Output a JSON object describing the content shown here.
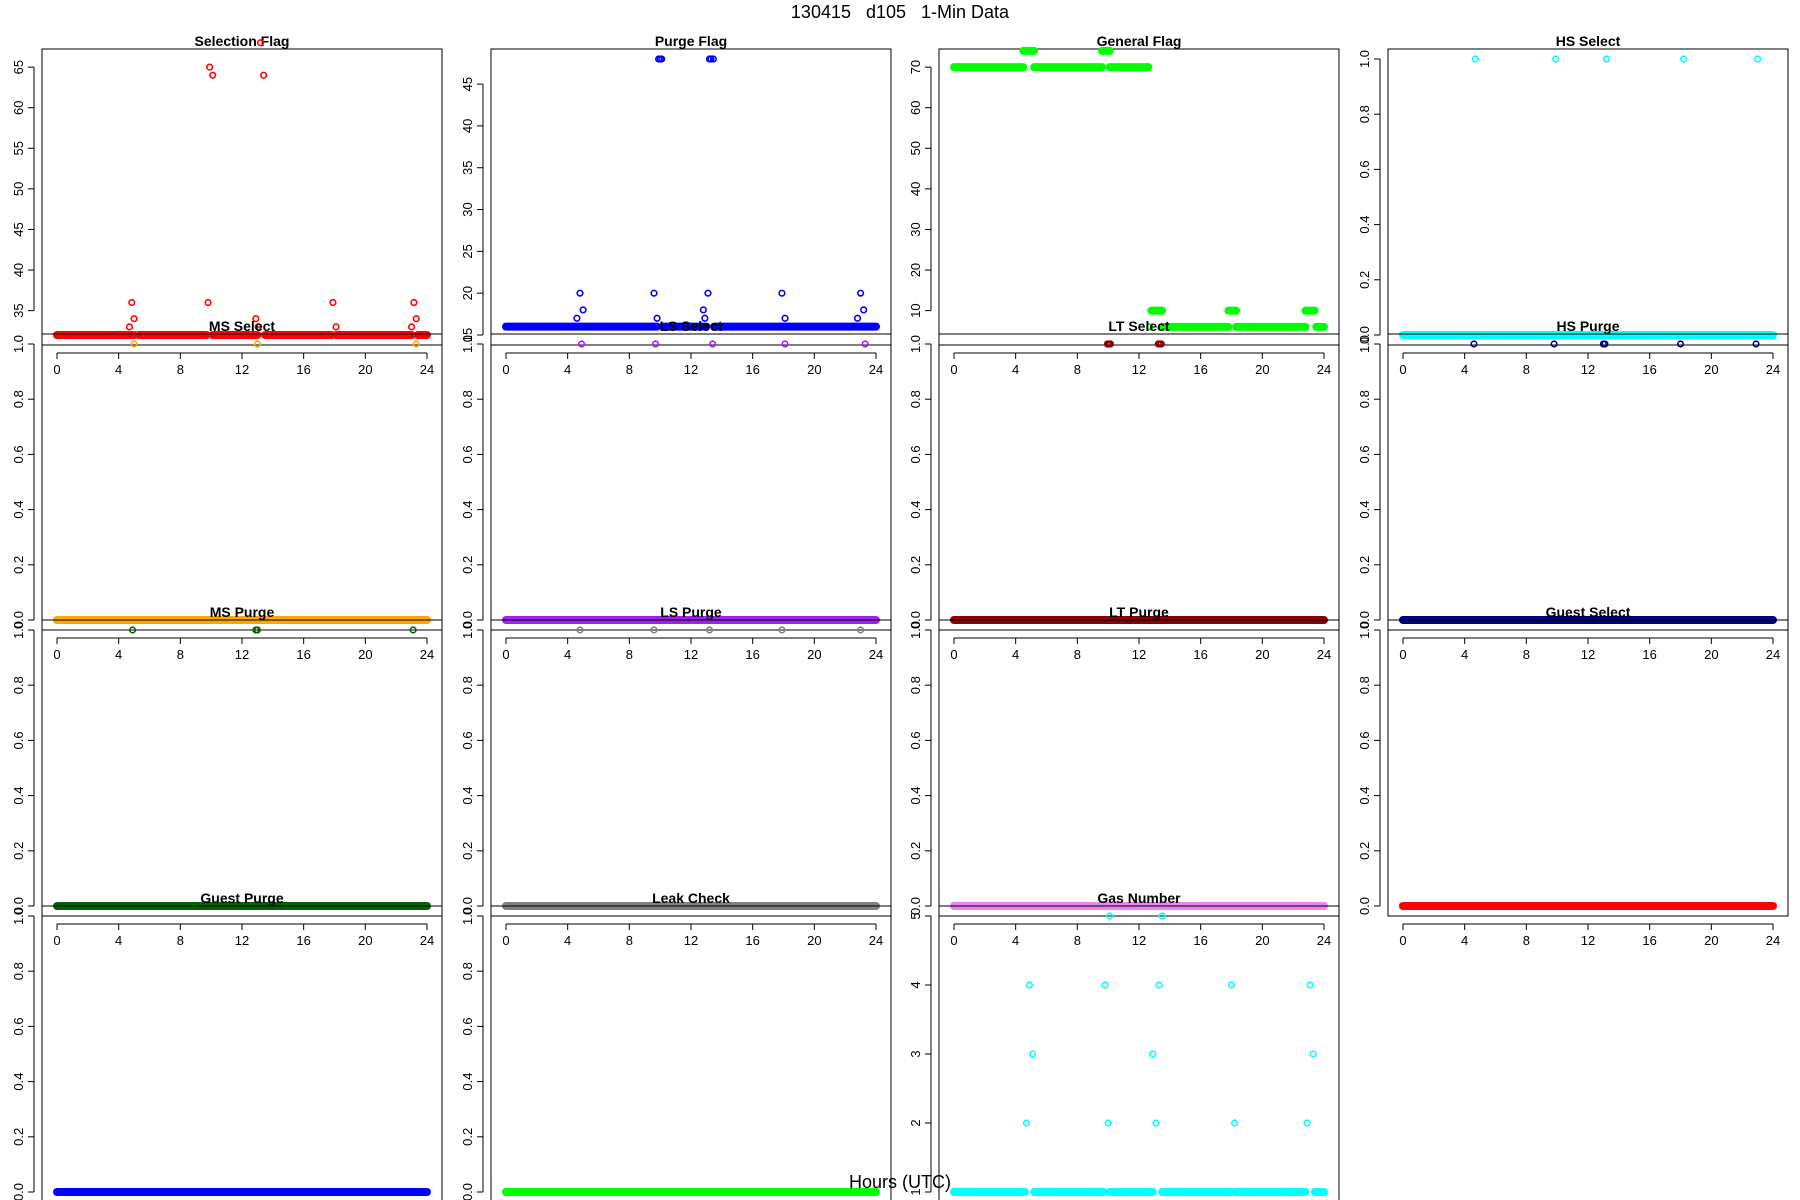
{
  "page": {
    "title": "130415   d105   1-Min Data",
    "xlabel": "Hours (UTC)"
  },
  "chart_data": [
    {
      "type": "scatter",
      "title": "Selection Flag",
      "color": "#ff0000",
      "xlim": [
        0,
        24
      ],
      "xticks": [
        0,
        4,
        8,
        12,
        16,
        20,
        24
      ],
      "ylim": [
        32,
        66
      ],
      "yticks": [
        35,
        40,
        45,
        50,
        55,
        60,
        65
      ],
      "baseline": 32,
      "gaps": [
        [
          5.0,
          5.3
        ],
        [
          9.7,
          10.1
        ],
        [
          12.7,
          12.8
        ],
        [
          13.0,
          13.5
        ],
        [
          17.8,
          18.1
        ],
        [
          23.0,
          23.4
        ]
      ],
      "points": [
        [
          4.7,
          33
        ],
        [
          4.85,
          36
        ],
        [
          5.0,
          34
        ],
        [
          9.8,
          36
        ],
        [
          9.9,
          65
        ],
        [
          10.1,
          64
        ],
        [
          12.9,
          34
        ],
        [
          13.05,
          33
        ],
        [
          13.2,
          68
        ],
        [
          13.4,
          64
        ],
        [
          17.9,
          36
        ],
        [
          18.1,
          33
        ],
        [
          23.0,
          33
        ],
        [
          23.15,
          36
        ],
        [
          23.3,
          34
        ]
      ]
    },
    {
      "type": "scatter",
      "title": "Purge Flag",
      "color": "#0000ff",
      "xlim": [
        0,
        24
      ],
      "xticks": [
        0,
        4,
        8,
        12,
        16,
        20,
        24
      ],
      "ylim": [
        15,
        48
      ],
      "yticks": [
        15,
        20,
        25,
        30,
        35,
        40,
        45
      ],
      "baseline": 16,
      "gaps": [
        [
          9.8,
          10.2
        ],
        [
          12.7,
          12.8
        ],
        [
          13.0,
          13.5
        ]
      ],
      "points": [
        [
          4.6,
          17
        ],
        [
          4.8,
          20
        ],
        [
          5.0,
          18
        ],
        [
          9.6,
          20
        ],
        [
          9.8,
          17
        ],
        [
          9.9,
          48
        ],
        [
          10.0,
          48
        ],
        [
          10.1,
          48
        ],
        [
          12.8,
          18
        ],
        [
          12.9,
          17
        ],
        [
          13.1,
          20
        ],
        [
          13.2,
          48
        ],
        [
          13.3,
          48
        ],
        [
          13.45,
          48
        ],
        [
          17.9,
          20
        ],
        [
          18.1,
          17
        ],
        [
          22.8,
          17
        ],
        [
          23.0,
          20
        ],
        [
          23.2,
          18
        ]
      ]
    },
    {
      "type": "scatter",
      "title": "General Flag",
      "color": "#00ff00",
      "xlim": [
        0,
        24
      ],
      "xticks": [
        0,
        4,
        8,
        12,
        16,
        20,
        24
      ],
      "ylim": [
        4,
        72
      ],
      "yticks": [
        10,
        20,
        30,
        40,
        50,
        60,
        70
      ],
      "segments": [
        [
          0,
          4.5,
          70
        ],
        [
          4.5,
          5.2,
          74
        ],
        [
          5.2,
          9.6,
          70
        ],
        [
          9.6,
          10.1,
          74
        ],
        [
          10.1,
          12.6,
          70
        ],
        [
          12.8,
          13.5,
          10
        ],
        [
          13.5,
          17.8,
          6
        ],
        [
          17.8,
          18.3,
          10
        ],
        [
          18.3,
          22.8,
          6
        ],
        [
          22.8,
          23.4,
          10
        ],
        [
          23.5,
          24,
          6
        ]
      ],
      "points": [
        [
          12.7,
          6
        ]
      ]
    },
    {
      "type": "scatter",
      "title": "HS Select",
      "color": "#00ffff",
      "xlim": [
        0,
        24
      ],
      "xticks": [
        0,
        4,
        8,
        12,
        16,
        20,
        24
      ],
      "ylim": [
        0,
        1
      ],
      "yticks": [
        0.0,
        0.2,
        0.4,
        0.6,
        0.8,
        1.0
      ],
      "baseline": 0,
      "points": [
        [
          4.7,
          1
        ],
        [
          9.9,
          1
        ],
        [
          13.2,
          1
        ],
        [
          18.2,
          1
        ],
        [
          23.0,
          1
        ]
      ]
    },
    {
      "type": "scatter",
      "title": "MS Select",
      "color": "#ffa500",
      "xlim": [
        0,
        24
      ],
      "xticks": [
        0,
        4,
        8,
        12,
        16,
        20,
        24
      ],
      "ylim": [
        0,
        1
      ],
      "yticks": [
        0.0,
        0.2,
        0.4,
        0.6,
        0.8,
        1.0
      ],
      "baseline": 0,
      "points": [
        [
          5.0,
          1
        ],
        [
          13.0,
          1
        ],
        [
          23.3,
          1
        ]
      ]
    },
    {
      "type": "scatter",
      "title": "LS Select",
      "color": "#a020f0",
      "xlim": [
        0,
        24
      ],
      "xticks": [
        0,
        4,
        8,
        12,
        16,
        20,
        24
      ],
      "ylim": [
        0,
        1
      ],
      "yticks": [
        0.0,
        0.2,
        0.4,
        0.6,
        0.8,
        1.0
      ],
      "baseline": 0,
      "points": [
        [
          4.9,
          1
        ],
        [
          9.7,
          1
        ],
        [
          13.4,
          1
        ],
        [
          18.1,
          1
        ],
        [
          23.3,
          1
        ]
      ]
    },
    {
      "type": "scatter",
      "title": "LT Select",
      "color": "#8b0000",
      "xlim": [
        0,
        24
      ],
      "xticks": [
        0,
        4,
        8,
        12,
        16,
        20,
        24
      ],
      "ylim": [
        0,
        1
      ],
      "yticks": [
        0.0,
        0.2,
        0.4,
        0.6,
        0.8,
        1.0
      ],
      "baseline": 0,
      "points": [
        [
          9.95,
          1
        ],
        [
          10.05,
          1
        ],
        [
          10.15,
          1
        ],
        [
          13.25,
          1
        ],
        [
          13.35,
          1
        ],
        [
          13.45,
          1
        ]
      ]
    },
    {
      "type": "scatter",
      "title": "HS Purge",
      "color": "#000080",
      "xlim": [
        0,
        24
      ],
      "xticks": [
        0,
        4,
        8,
        12,
        16,
        20,
        24
      ],
      "ylim": [
        0,
        1
      ],
      "yticks": [
        0.0,
        0.2,
        0.4,
        0.6,
        0.8,
        1.0
      ],
      "baseline": 0,
      "points": [
        [
          4.6,
          1
        ],
        [
          9.8,
          1
        ],
        [
          13.0,
          1
        ],
        [
          13.1,
          1
        ],
        [
          18.0,
          1
        ],
        [
          22.9,
          1
        ]
      ]
    },
    {
      "type": "scatter",
      "title": "MS Purge",
      "color": "#006400",
      "xlim": [
        0,
        24
      ],
      "xticks": [
        0,
        4,
        8,
        12,
        16,
        20,
        24
      ],
      "ylim": [
        0,
        1
      ],
      "yticks": [
        0.0,
        0.2,
        0.4,
        0.6,
        0.8,
        1.0
      ],
      "baseline": 0,
      "points": [
        [
          4.9,
          1
        ],
        [
          12.9,
          1
        ],
        [
          13.0,
          1
        ],
        [
          23.1,
          1
        ]
      ]
    },
    {
      "type": "scatter",
      "title": "LS Purge",
      "color": "#808080",
      "xlim": [
        0,
        24
      ],
      "xticks": [
        0,
        4,
        8,
        12,
        16,
        20,
        24
      ],
      "ylim": [
        0,
        1
      ],
      "yticks": [
        0.0,
        0.2,
        0.4,
        0.6,
        0.8,
        1.0
      ],
      "baseline": 0,
      "points": [
        [
          4.8,
          1
        ],
        [
          9.6,
          1
        ],
        [
          13.2,
          1
        ],
        [
          17.9,
          1
        ],
        [
          23.0,
          1
        ]
      ]
    },
    {
      "type": "scatter",
      "title": "LT Purge",
      "color": "#ee82ee",
      "xlim": [
        0,
        24
      ],
      "xticks": [
        0,
        4,
        8,
        12,
        16,
        20,
        24
      ],
      "ylim": [
        0,
        1
      ],
      "yticks": [
        0.0,
        0.2,
        0.4,
        0.6,
        0.8,
        1.0
      ],
      "baseline": 0,
      "points": []
    },
    {
      "type": "scatter",
      "title": "Guest Select",
      "color": "#ff0000",
      "xlim": [
        0,
        24
      ],
      "xticks": [
        0,
        4,
        8,
        12,
        16,
        20,
        24
      ],
      "ylim": [
        0,
        1
      ],
      "yticks": [
        0.0,
        0.2,
        0.4,
        0.6,
        0.8,
        1.0
      ],
      "baseline": 0,
      "points": []
    },
    {
      "type": "scatter",
      "title": "Guest Purge",
      "color": "#0000ff",
      "xlim": [
        0,
        24
      ],
      "xticks": [
        0,
        4,
        8,
        12,
        16,
        20,
        24
      ],
      "ylim": [
        0,
        1
      ],
      "yticks": [
        0.0,
        0.2,
        0.4,
        0.6,
        0.8,
        1.0
      ],
      "baseline": 0,
      "points": []
    },
    {
      "type": "scatter",
      "title": "Leak Check",
      "color": "#00ff00",
      "xlim": [
        0,
        24
      ],
      "xticks": [
        0,
        4,
        8,
        12,
        16,
        20,
        24
      ],
      "ylim": [
        0,
        1
      ],
      "yticks": [
        0.0,
        0.2,
        0.4,
        0.6,
        0.8,
        1.0
      ],
      "baseline": 0,
      "points": []
    },
    {
      "type": "scatter",
      "title": "Gas Number",
      "color": "#00ffff",
      "xlim": [
        0,
        24
      ],
      "xticks": [
        0,
        4,
        8,
        12,
        16,
        20,
        24
      ],
      "ylim": [
        1,
        5
      ],
      "yticks": [
        1,
        2,
        3,
        4,
        5
      ],
      "baseline": 1,
      "gaps": [
        [
          4.6,
          5.2
        ],
        [
          9.7,
          10.1
        ],
        [
          12.7,
          12.8
        ],
        [
          12.9,
          13.5
        ],
        [
          17.9,
          18.2
        ],
        [
          22.8,
          23.4
        ]
      ],
      "points": [
        [
          4.7,
          2
        ],
        [
          4.9,
          4
        ],
        [
          5.1,
          3
        ],
        [
          9.8,
          4
        ],
        [
          10.0,
          2
        ],
        [
          10.1,
          5
        ],
        [
          12.9,
          3
        ],
        [
          13.1,
          2
        ],
        [
          13.3,
          4
        ],
        [
          13.5,
          5
        ],
        [
          18.0,
          4
        ],
        [
          18.2,
          2
        ],
        [
          22.9,
          2
        ],
        [
          23.1,
          4
        ],
        [
          23.3,
          3
        ]
      ]
    }
  ]
}
